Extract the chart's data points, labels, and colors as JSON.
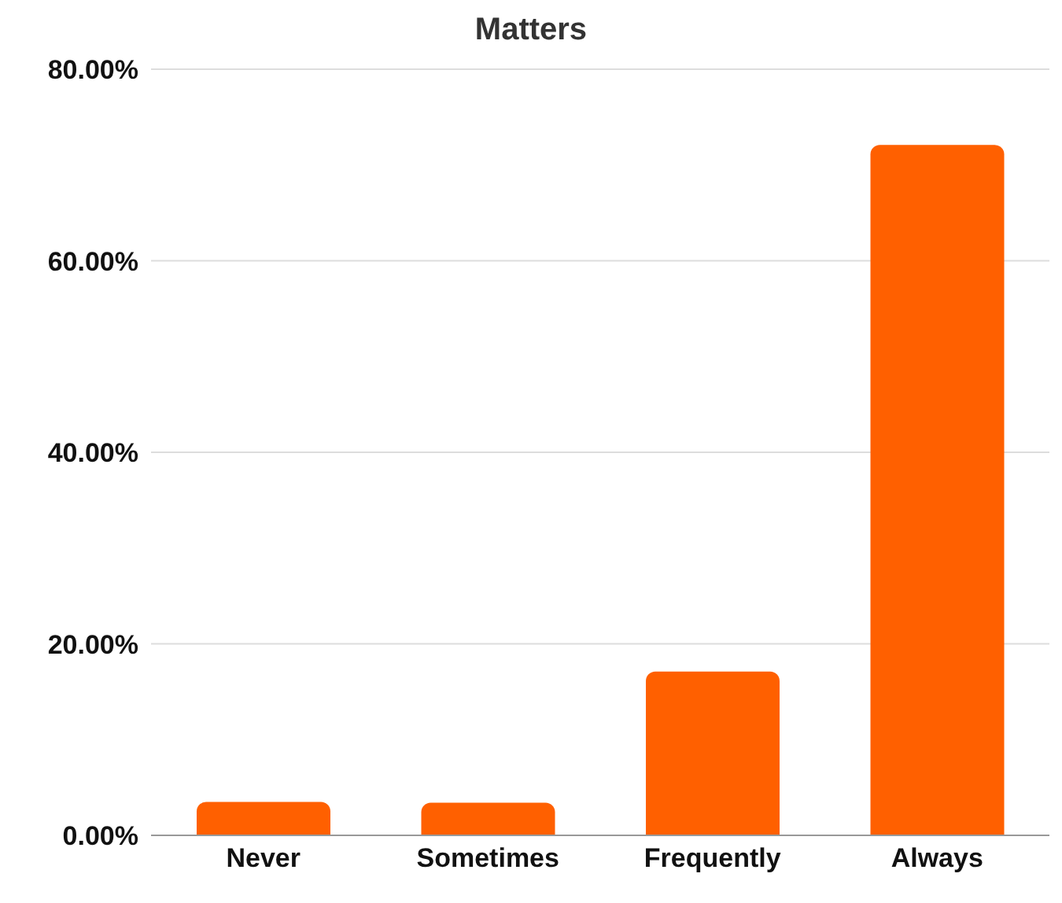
{
  "chart_data": {
    "type": "bar",
    "title": "Matters",
    "categories": [
      "Never",
      "Sometimes",
      "Frequently",
      "Always"
    ],
    "values": [
      3.5,
      3.4,
      17.1,
      72.1
    ],
    "color": "#ff6000",
    "ylim": [
      0,
      80
    ],
    "yticks": [
      {
        "value": 0,
        "label": "0.00%"
      },
      {
        "value": 20,
        "label": "20.00%"
      },
      {
        "value": 40,
        "label": "40.00%"
      },
      {
        "value": 60,
        "label": "60.00%"
      },
      {
        "value": 80,
        "label": "80.00%"
      }
    ],
    "grid": "y"
  }
}
